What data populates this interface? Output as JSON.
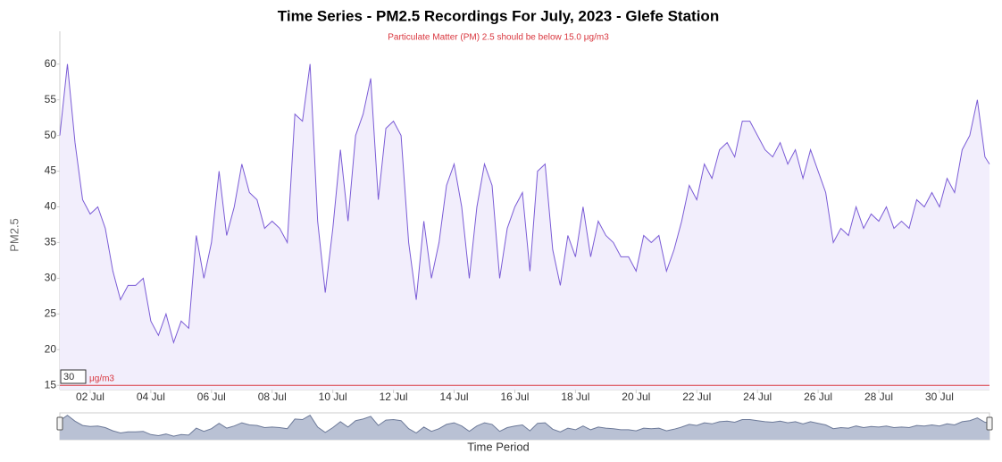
{
  "chart_data": {
    "type": "line",
    "title": "Time Series - PM2.5 Recordings For July, 2023 - Glefe Station",
    "subtitle": "Particulate Matter (PM) 2.5 should be below 15.0 μg/m3",
    "y_label": "PM2.5",
    "x_label": "Time Period",
    "range_input": "30",
    "threshold": {
      "value": 15,
      "label": "μg/m3",
      "color": "#d9363e"
    },
    "x": [
      1,
      1.25,
      1.5,
      1.75,
      2,
      2.25,
      2.5,
      2.75,
      3,
      3.25,
      3.5,
      3.75,
      4,
      4.25,
      4.5,
      4.75,
      5,
      5.25,
      5.5,
      5.75,
      6,
      6.25,
      6.5,
      6.75,
      7,
      7.25,
      7.5,
      7.75,
      8,
      8.25,
      8.5,
      8.75,
      9,
      9.25,
      9.5,
      9.75,
      10,
      10.25,
      10.5,
      10.75,
      11,
      11.25,
      11.5,
      11.75,
      12,
      12.25,
      12.5,
      12.75,
      13,
      13.25,
      13.5,
      13.75,
      14,
      14.25,
      14.5,
      14.75,
      15,
      15.25,
      15.5,
      15.75,
      16,
      16.25,
      16.5,
      16.75,
      17,
      17.25,
      17.5,
      17.75,
      18,
      18.25,
      18.5,
      18.75,
      19,
      19.25,
      19.5,
      19.75,
      20,
      20.25,
      20.5,
      20.75,
      21,
      21.25,
      21.5,
      21.75,
      22,
      22.25,
      22.5,
      22.75,
      23,
      23.25,
      23.5,
      23.75,
      24,
      24.25,
      24.5,
      24.75,
      25,
      25.25,
      25.5,
      25.75,
      26,
      26.25,
      26.5,
      26.75,
      27,
      27.25,
      27.5,
      27.75,
      28,
      28.25,
      28.5,
      28.75,
      29,
      29.25,
      29.5,
      29.75,
      30,
      30.25,
      30.5,
      30.75,
      31,
      31.25,
      31.5,
      31.65
    ],
    "series": [
      {
        "name": "PM2.5",
        "color": "#7b5cd6",
        "fill": "#f2eefc",
        "values": [
          50,
          60,
          49,
          41,
          39,
          40,
          37,
          31,
          27,
          29,
          29,
          30,
          24,
          22,
          25,
          21,
          24,
          23,
          36,
          30,
          35,
          45,
          36,
          40,
          46,
          42,
          41,
          37,
          38,
          37,
          35,
          53,
          52,
          60,
          38,
          28,
          37,
          48,
          38,
          50,
          53,
          58,
          41,
          51,
          52,
          50,
          35,
          27,
          38,
          30,
          35,
          43,
          46,
          40,
          30,
          40,
          46,
          43,
          30,
          37,
          40,
          42,
          31,
          45,
          46,
          34,
          29,
          36,
          33,
          40,
          33,
          38,
          36,
          35,
          33,
          33,
          31,
          36,
          35,
          36,
          31,
          34,
          38,
          43,
          41,
          46,
          44,
          48,
          49,
          47,
          52,
          52,
          50,
          48,
          47,
          49,
          46,
          48,
          44,
          48,
          45,
          42,
          35,
          37,
          36,
          40,
          37,
          39,
          38,
          40,
          37,
          38,
          37,
          41,
          40,
          42,
          40,
          44,
          42,
          48,
          50,
          55,
          47,
          46
        ]
      }
    ],
    "xlim": [
      1,
      31.65
    ],
    "xticks": [
      {
        "value": 2,
        "label": "02 Jul"
      },
      {
        "value": 4,
        "label": "04 Jul"
      },
      {
        "value": 6,
        "label": "06 Jul"
      },
      {
        "value": 8,
        "label": "08 Jul"
      },
      {
        "value": 10,
        "label": "10 Jul"
      },
      {
        "value": 12,
        "label": "12 Jul"
      },
      {
        "value": 14,
        "label": "14 Jul"
      },
      {
        "value": 16,
        "label": "16 Jul"
      },
      {
        "value": 18,
        "label": "18 Jul"
      },
      {
        "value": 20,
        "label": "20 Jul"
      },
      {
        "value": 22,
        "label": "22 Jul"
      },
      {
        "value": 24,
        "label": "24 Jul"
      },
      {
        "value": 26,
        "label": "26 Jul"
      },
      {
        "value": 28,
        "label": "28 Jul"
      },
      {
        "value": 30,
        "label": "30 Jul"
      }
    ],
    "ylim": [
      14.4,
      64.6
    ],
    "yticks": [
      15,
      20,
      25,
      30,
      35,
      40,
      45,
      50,
      55,
      60
    ]
  }
}
